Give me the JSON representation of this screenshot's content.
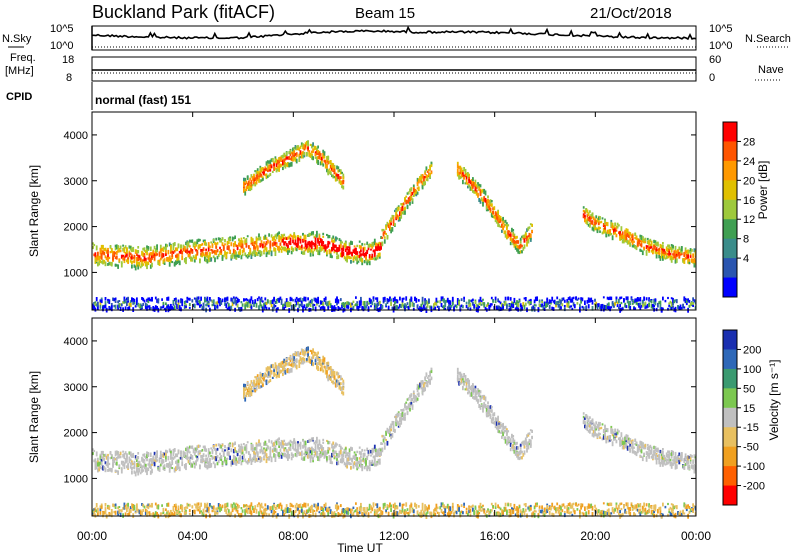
{
  "header": {
    "station": "Buckland Park (fitACF)",
    "beam": "Beam 15",
    "date": "21/Oct/2018"
  },
  "top_panels": {
    "nsky_label": "N.Sky",
    "nsky_ticks": [
      "10^5",
      "10^0"
    ],
    "nsearch_label": "N.Search",
    "nsearch_ticks": [
      "10^5",
      "10^0"
    ],
    "freq_label_1": "Freq.",
    "freq_label_2": "[MHz]",
    "freq_ticks": [
      "18",
      "8"
    ],
    "nave_label": "Nave",
    "nave_ticks": [
      "60",
      "0"
    ],
    "cpid_label": "CPID",
    "cpid_value": "normal (fast) 151"
  },
  "chart_data": [
    {
      "type": "heatmap",
      "parameter": "Power",
      "ylabel": "Slant Range [km]",
      "ylim": [
        180,
        4500
      ],
      "yticks": [
        "1000",
        "2000",
        "3000",
        "4000"
      ],
      "xlim": [
        "00:00",
        "24:00"
      ],
      "colorbar_label": "Power [dB]",
      "colorbar_ticks": [
        "28",
        "24",
        "20",
        "16",
        "12",
        "8",
        "4"
      ],
      "colorbar_colors": [
        "#ff0000",
        "#ff5500",
        "#ff9900",
        "#e0c000",
        "#9ec93c",
        "#3f9f52",
        "#3a8c8a",
        "#2a55b0",
        "#0000ff"
      ],
      "echo_bands": [
        {
          "name": "near-range clutter",
          "t": [
            0,
            24
          ],
          "r": [
            250,
            450
          ]
        },
        {
          "name": "main band",
          "t": [
            0,
            2,
            4,
            6,
            7,
            8,
            8.5,
            9,
            10,
            11,
            11.5
          ],
          "r": [
            1450,
            1350,
            1500,
            1600,
            1650,
            1700,
            1650,
            1700,
            1500,
            1450,
            1600
          ]
        },
        {
          "name": "upper arc",
          "t": [
            6,
            7,
            8,
            8.5,
            9,
            9.5,
            10
          ],
          "r": [
            2900,
            3300,
            3600,
            3750,
            3600,
            3300,
            3000
          ]
        },
        {
          "name": "rising arc 1",
          "t": [
            11.5,
            12,
            12.5,
            13,
            13.5
          ],
          "r": [
            1800,
            2200,
            2600,
            3000,
            3300
          ]
        },
        {
          "name": "rising arc 2",
          "t": [
            14.5,
            15,
            15.5,
            16,
            16.5,
            17,
            17.5
          ],
          "r": [
            3300,
            3000,
            2700,
            2300,
            1900,
            1600,
            2000
          ]
        },
        {
          "name": "evening band",
          "t": [
            19.5,
            20,
            21,
            22,
            23,
            24
          ],
          "r": [
            2300,
            2100,
            1900,
            1600,
            1450,
            1350
          ]
        }
      ]
    },
    {
      "type": "heatmap",
      "parameter": "Velocity",
      "ylabel": "Slant Range [km]",
      "ylim": [
        180,
        4500
      ],
      "yticks": [
        "1000",
        "2000",
        "3000",
        "4000"
      ],
      "xlabel": "Time UT",
      "xlim": [
        "00:00",
        "24:00"
      ],
      "xticks": [
        "00:00",
        "04:00",
        "08:00",
        "12:00",
        "16:00",
        "20:00",
        "00:00"
      ],
      "colorbar_label": "Velocity [m s⁻¹]",
      "colorbar_ticks": [
        "200",
        "100",
        "50",
        "15",
        "-15",
        "-50",
        "-100",
        "-200"
      ],
      "colorbar_colors": [
        "#1a2fb0",
        "#2e68b8",
        "#3a9a70",
        "#7cc850",
        "#c0c0c0",
        "#e8c060",
        "#f0a020",
        "#ff6000",
        "#ff0000"
      ]
    }
  ]
}
